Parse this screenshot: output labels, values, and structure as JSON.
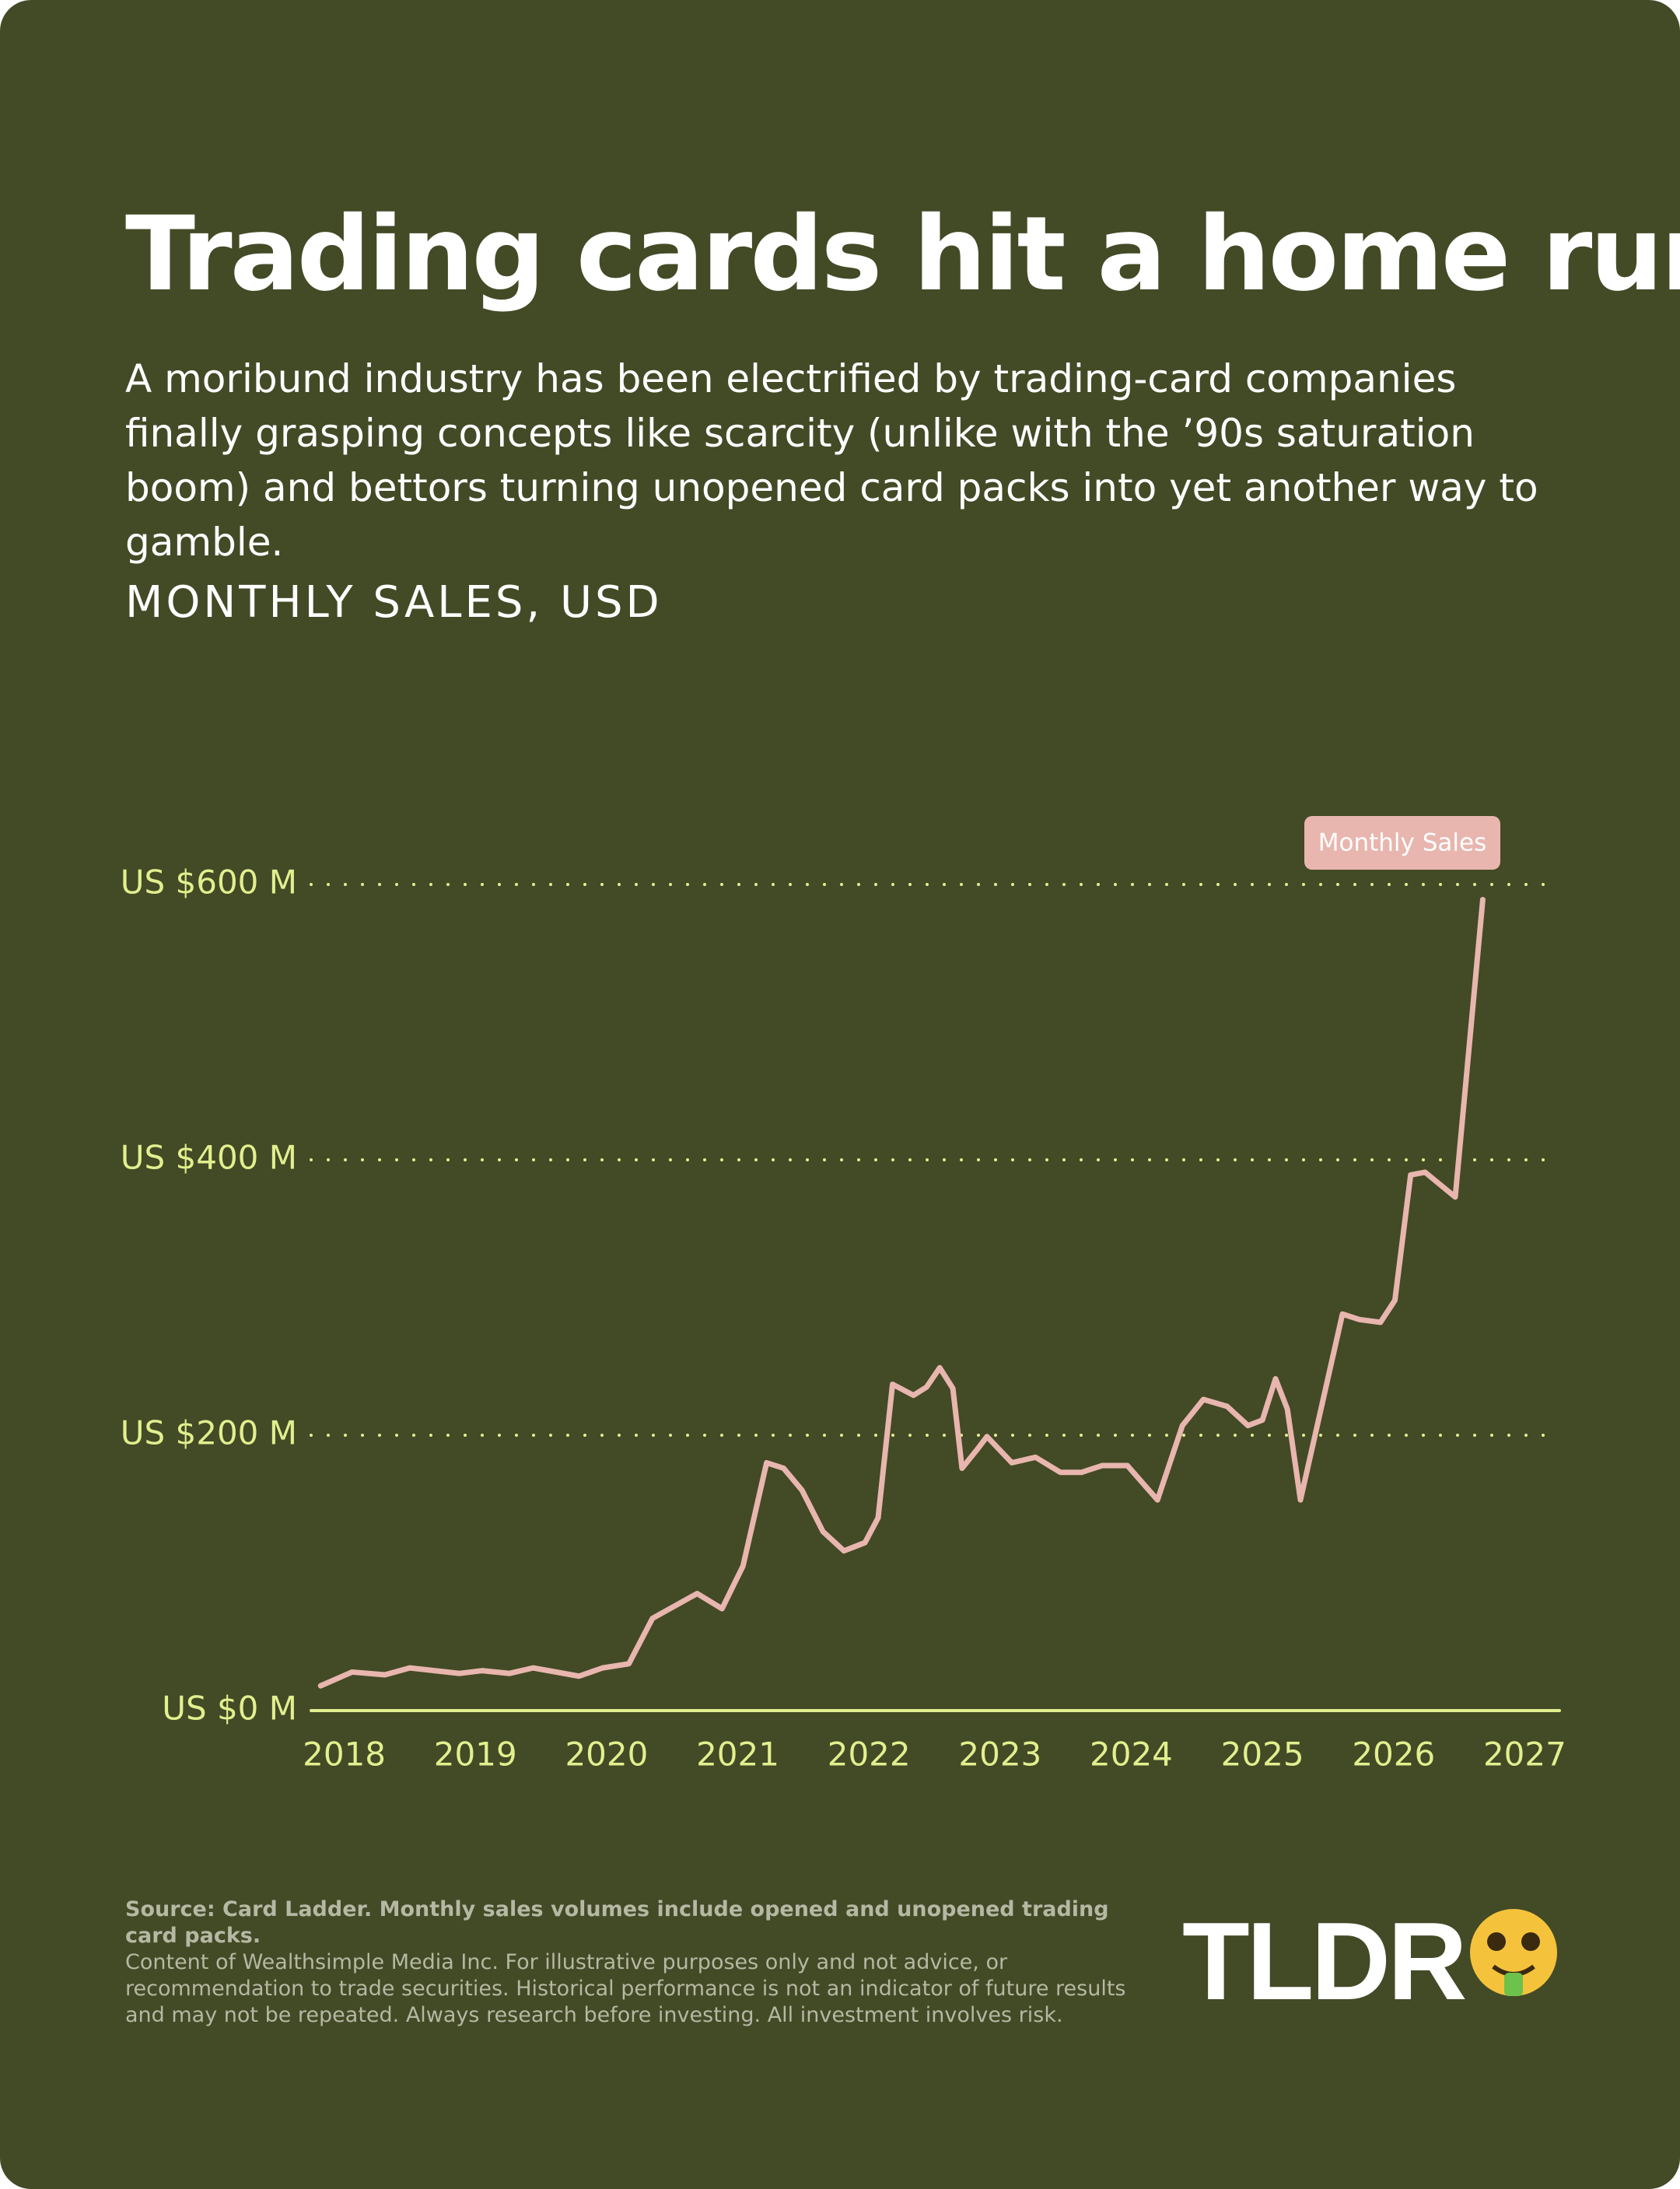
{
  "chart_data": {
    "type": "line",
    "title": "Trading cards hit a home run",
    "subtitle": "A moribund industry has been electrified by trading-card companies finally grasping concepts like scarcity (unlike with the ’90s saturation boom) and bettors turning unopened card packs into yet another way to gamble.",
    "y_label": "MONTHLY SALES, USD",
    "x": [
      2017.82,
      2018.06,
      2018.31,
      2018.5,
      2018.88,
      2019.05,
      2019.26,
      2019.44,
      2019.79,
      2019.97,
      2020.17,
      2020.35,
      2020.69,
      2020.88,
      2021.04,
      2021.22,
      2021.35,
      2021.49,
      2021.65,
      2021.81,
      2021.97,
      2022.07,
      2022.18,
      2022.34,
      2022.44,
      2022.54,
      2022.64,
      2022.71,
      2022.82,
      2022.9,
      2023.09,
      2023.27,
      2023.46,
      2023.62,
      2023.78,
      2023.97,
      2024.2,
      2024.39,
      2024.55,
      2024.73,
      2024.89,
      2025.0,
      2025.1,
      2025.19,
      2025.29,
      2025.61,
      2025.74,
      2025.9,
      2026.01,
      2026.13,
      2026.24,
      2026.47,
      2026.68
    ],
    "series": [
      {
        "name": "Monthly Sales",
        "color": "#e8b6ae",
        "values": [
          18,
          28,
          26,
          31,
          27,
          29,
          27,
          31,
          25,
          31,
          34,
          67,
          85,
          74,
          105,
          180,
          176,
          160,
          130,
          116,
          122,
          140,
          237,
          229,
          235,
          249,
          234,
          176,
          189,
          199,
          180,
          184,
          173,
          173,
          178,
          178,
          153,
          207,
          226,
          221,
          207,
          211,
          241,
          219,
          153,
          288,
          284,
          282,
          298,
          389,
          391,
          373,
          589
        ]
      }
    ],
    "xlim": [
      2017.7,
      2027.3
    ],
    "xticks": [
      2018,
      2019,
      2020,
      2021,
      2022,
      2023,
      2024,
      2025,
      2026,
      2027
    ],
    "ylim": [
      0,
      600
    ],
    "yticks": [
      {
        "value": 0,
        "label": "US $0 M"
      },
      {
        "value": 200,
        "label": "US $200 M"
      },
      {
        "value": 400,
        "label": "US $400 M"
      },
      {
        "value": 600,
        "label": "US $600 M"
      }
    ],
    "grid": true,
    "source": "Source: Card Ladder. Monthly sales volumes include opened and unopened trading card packs.",
    "note": "Content of Wealthsimple Media Inc. For illustrative purposes only and not advice, or recommendation to trade securities. Historical performance is not an indicator of future results and may not be repeated. Always research before investing. All investment involves risk."
  },
  "brand": "TLDR"
}
